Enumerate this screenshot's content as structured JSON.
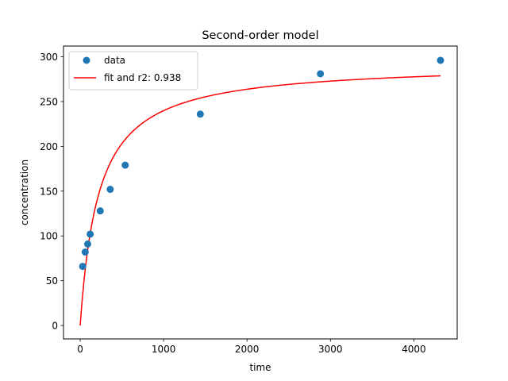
{
  "chart_data": {
    "type": "scatter",
    "title": "Second-order model",
    "xlabel": "time",
    "ylabel": "concentration",
    "xlim": [
      -200,
      4520
    ],
    "ylim": [
      -15,
      312
    ],
    "x_ticks": [
      0,
      1000,
      2000,
      3000,
      4000
    ],
    "y_ticks": [
      0,
      50,
      100,
      150,
      200,
      250,
      300
    ],
    "grid": false,
    "legend_position": "top-left",
    "series": [
      {
        "name": "data",
        "kind": "scatter",
        "color": "#1f77b4",
        "x": [
          30,
          60,
          90,
          120,
          240,
          360,
          540,
          1440,
          2880,
          4320
        ],
        "y": [
          66,
          82,
          91,
          102,
          128,
          152,
          179,
          236,
          281,
          296
        ]
      },
      {
        "name": "fit and r2: 0.938",
        "kind": "line",
        "color": "#ff0000",
        "model": "second-order",
        "qe": 293.0,
        "k2": 1.54e-05,
        "x_start": 0,
        "x_end": 4320
      }
    ]
  }
}
